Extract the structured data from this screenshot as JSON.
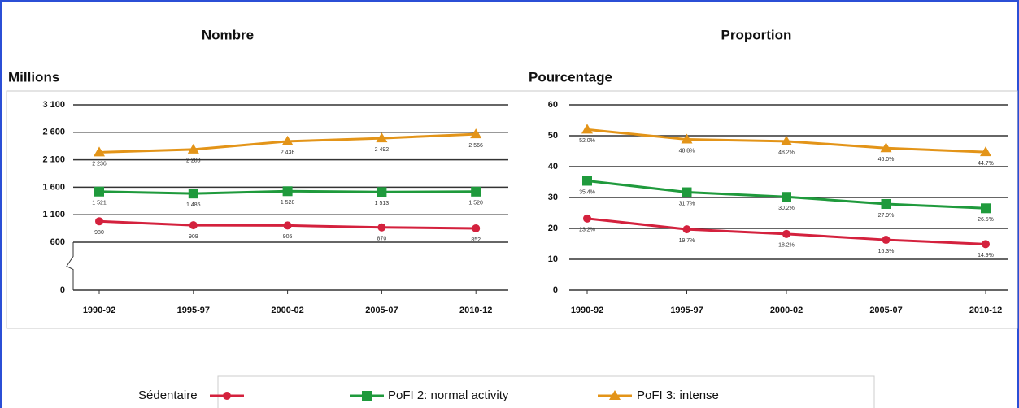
{
  "chart_data": [
    {
      "type": "line",
      "title": "Nombre",
      "ylabel": "Millions",
      "categories": [
        "1990-92",
        "1995-97",
        "2000-02",
        "2005-07",
        "2010-12"
      ],
      "ylim": [
        0,
        3100
      ],
      "axis_break": true,
      "grid": true,
      "yticks": [
        0,
        600,
        {
          "value": 1100,
          "label": "1 100"
        },
        {
          "value": 1600,
          "label": "1 600"
        },
        {
          "value": 2100,
          "label": "2 100"
        },
        {
          "value": 2600,
          "label": "2 600"
        },
        {
          "value": 3100,
          "label": "3 100"
        }
      ],
      "series": [
        {
          "color": "#d4213d",
          "marker": "circle",
          "values": [
            980,
            909,
            905,
            870,
            852
          ],
          "value_labels": [
            "980",
            "909",
            "905",
            "870",
            "852"
          ]
        },
        {
          "color": "#1f9a3c",
          "marker": "square",
          "values": [
            1521,
            1485,
            1528,
            1513,
            1520
          ],
          "value_labels": [
            "1 521",
            "1 485",
            "1 528",
            "1 513",
            "1 520"
          ]
        },
        {
          "color": "#e39418",
          "marker": "triangle",
          "values": [
            2236,
            2288,
            2436,
            2492,
            2566
          ],
          "value_labels": [
            "2 236",
            "2 288",
            "2 436",
            "2 492",
            "2 566"
          ]
        }
      ]
    },
    {
      "type": "line",
      "title": "Proportion",
      "ylabel": "Pourcentage",
      "categories": [
        "1990-92",
        "1995-97",
        "2000-02",
        "2005-07",
        "2010-12"
      ],
      "ylim": [
        0,
        60
      ],
      "grid": true,
      "yticks": [
        0,
        10,
        20,
        30,
        40,
        50,
        60
      ],
      "series": [
        {
          "color": "#d4213d",
          "marker": "circle",
          "values": [
            23.2,
            19.7,
            18.2,
            16.3,
            14.9
          ],
          "value_labels": [
            "23.2%",
            "19.7%",
            "18.2%",
            "16.3%",
            "14.9%"
          ]
        },
        {
          "color": "#1f9a3c",
          "marker": "square",
          "values": [
            35.4,
            31.7,
            30.2,
            27.9,
            26.5
          ],
          "value_labels": [
            "35.4%",
            "31.7%",
            "30.2%",
            "27.9%",
            "26.5%"
          ]
        },
        {
          "color": "#e39418",
          "marker": "triangle",
          "values": [
            52.0,
            48.8,
            48.2,
            46.0,
            44.7
          ],
          "value_labels": [
            "52.0%",
            "48.8%",
            "48.2%",
            "46.0%",
            "44.7%"
          ]
        }
      ]
    }
  ],
  "legend": [
    {
      "name": "Sédentaire",
      "color": "#d4213d",
      "marker": "circle"
    },
    {
      "name": "PoFI 2: normal activity",
      "color": "#1f9a3c",
      "marker": "square"
    },
    {
      "name": "PoFI 3: intense",
      "color": "#e39418",
      "marker": "triangle"
    }
  ]
}
